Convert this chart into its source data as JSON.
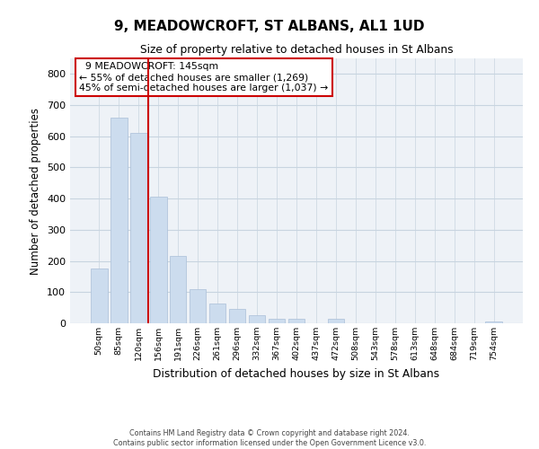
{
  "title": "9, MEADOWCROFT, ST ALBANS, AL1 1UD",
  "subtitle": "Size of property relative to detached houses in St Albans",
  "xlabel": "Distribution of detached houses by size in St Albans",
  "ylabel": "Number of detached properties",
  "bar_labels": [
    "50sqm",
    "85sqm",
    "120sqm",
    "156sqm",
    "191sqm",
    "226sqm",
    "261sqm",
    "296sqm",
    "332sqm",
    "367sqm",
    "402sqm",
    "437sqm",
    "472sqm",
    "508sqm",
    "543sqm",
    "578sqm",
    "613sqm",
    "648sqm",
    "684sqm",
    "719sqm",
    "754sqm"
  ],
  "bar_values": [
    175,
    660,
    610,
    405,
    215,
    110,
    62,
    47,
    25,
    15,
    15,
    0,
    15,
    0,
    0,
    0,
    0,
    0,
    0,
    0,
    5
  ],
  "bar_color": "#ccdcee",
  "bar_edge_color": "#aabfd8",
  "property_line_x": 2.5,
  "property_label": "9 MEADOWCROFT: 145sqm",
  "pct_smaller": "55% of detached houses are smaller (1,269)",
  "pct_larger": "45% of semi-detached houses are larger (1,037)",
  "annotation_box_color": "#ffffff",
  "annotation_box_edge": "#cc0000",
  "line_color": "#cc0000",
  "ylim": [
    0,
    850
  ],
  "yticks": [
    0,
    100,
    200,
    300,
    400,
    500,
    600,
    700,
    800
  ],
  "footer_line1": "Contains HM Land Registry data © Crown copyright and database right 2024.",
  "footer_line2": "Contains public sector information licensed under the Open Government Licence v3.0.",
  "bg_color": "#eef2f7"
}
